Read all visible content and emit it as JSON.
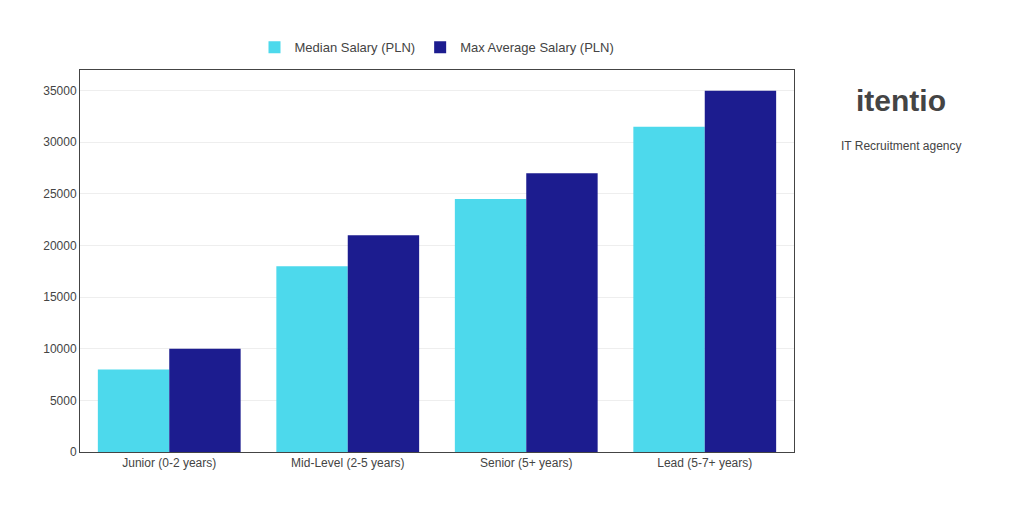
{
  "chart_data": {
    "type": "bar",
    "categories": [
      "Junior (0-2 years)",
      "Mid-Level (2-5 years)",
      "Senior (5+ years)",
      "Lead (5-7+ years)"
    ],
    "series": [
      {
        "name": "Median Salary (PLN)",
        "color": "#4DD9EC",
        "values": [
          8000,
          18000,
          24500,
          31500
        ]
      },
      {
        "name": "Max Average Salary (PLN)",
        "color": "#1C1C8F",
        "values": [
          10000,
          21000,
          27000,
          35000
        ]
      }
    ],
    "ylim": [
      0,
      37000
    ],
    "yticks": [
      0,
      5000,
      10000,
      15000,
      20000,
      25000,
      30000,
      35000
    ],
    "grid": true,
    "legend": "top",
    "annotations": [
      "itentio",
      "IT Recruitment agency"
    ]
  }
}
